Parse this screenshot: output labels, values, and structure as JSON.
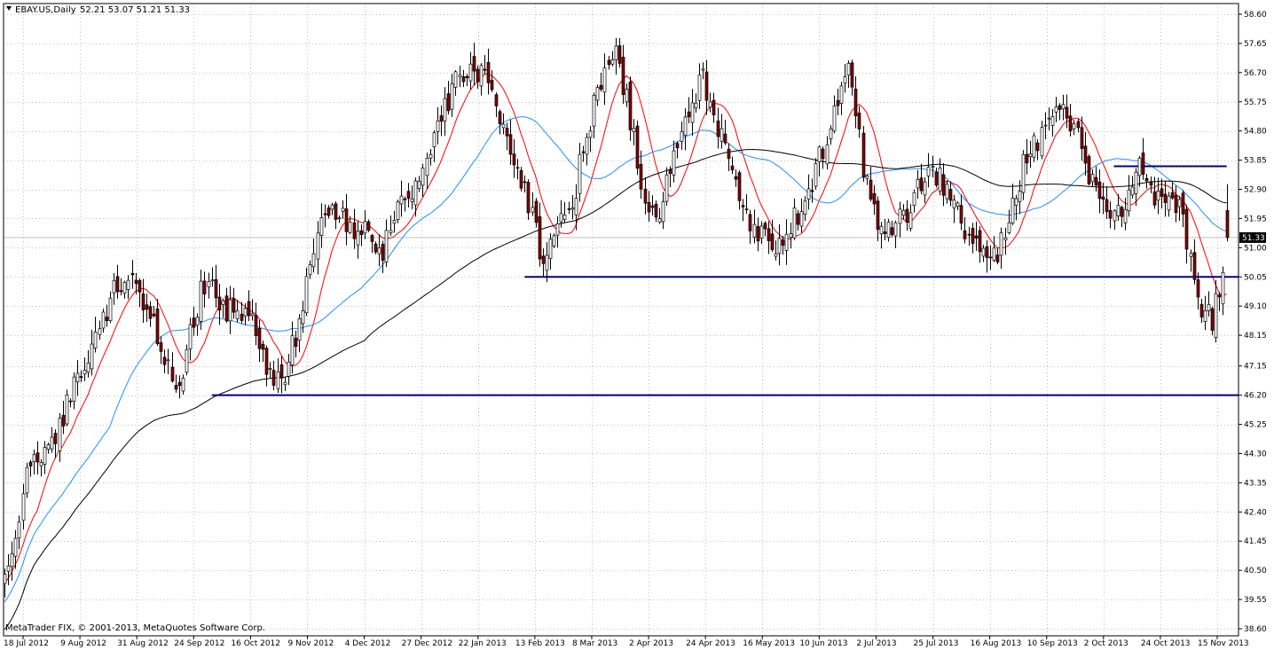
{
  "header": {
    "symbol": "EBAY.US,Daily",
    "ohlc": "52.21 53.07 51.21 51.33"
  },
  "copyright": "MetaTrader FIX, © 2001-2013, MetaQuotes Software Corp.",
  "current_price_label": "51.33",
  "colors": {
    "background": "#ffffff",
    "grid": "#c0c0c0",
    "bull_candle": "#ffffff",
    "bear_candle": "#800000",
    "candle_outline": "#000000",
    "ma_fast": "#ff0000",
    "ma_mid": "#1e90ff",
    "ma_slow": "#000000",
    "support_resistance": "#00008b",
    "current_price_box": "#000000"
  },
  "chart_data": {
    "type": "candlestick",
    "symbol": "EBAY.US",
    "timeframe": "Daily",
    "last_bar": {
      "open": 52.21,
      "high": 53.07,
      "low": 51.21,
      "close": 51.33
    },
    "ylim": [
      38.6,
      58.6
    ],
    "y_ticks": [
      "58.60",
      "57.65",
      "56.70",
      "55.75",
      "54.80",
      "53.85",
      "52.90",
      "51.95",
      "51.00",
      "50.05",
      "49.10",
      "48.15",
      "47.15",
      "46.20",
      "45.25",
      "44.30",
      "43.35",
      "42.40",
      "41.45",
      "40.50",
      "39.55",
      "38.60"
    ],
    "x_ticks": [
      "18 Jul 2012",
      "9 Aug 2012",
      "31 Aug 2012",
      "24 Sep 2012",
      "16 Oct 2012",
      "9 Nov 2012",
      "4 Dec 2012",
      "27 Dec 2012",
      "22 Jan 2013",
      "13 Feb 2013",
      "8 Mar 2013",
      "2 Apr 2013",
      "24 Apr 2013",
      "16 May 2013",
      "10 Jun 2013",
      "2 Jul 2013",
      "25 Jul 2013",
      "16 Aug 2013",
      "10 Sep 2013",
      "2 Oct 2013",
      "24 Oct 2013",
      "15 Nov 2013"
    ],
    "grid": true,
    "legend": "none",
    "anchors": [
      [
        0,
        40.0
      ],
      [
        6,
        43.6
      ],
      [
        12,
        44.5
      ],
      [
        18,
        46.2
      ],
      [
        24,
        47.8
      ],
      [
        30,
        49.6
      ],
      [
        35,
        49.8
      ],
      [
        40,
        48.6
      ],
      [
        44,
        47.6
      ],
      [
        48,
        46.5
      ],
      [
        52,
        48.8
      ],
      [
        56,
        50.2
      ],
      [
        60,
        49.0
      ],
      [
        64,
        49.2
      ],
      [
        68,
        48.5
      ],
      [
        72,
        47.2
      ],
      [
        76,
        46.4
      ],
      [
        80,
        48.2
      ],
      [
        84,
        50.5
      ],
      [
        88,
        52.2
      ],
      [
        92,
        52.0
      ],
      [
        96,
        51.5
      ],
      [
        100,
        51.8
      ],
      [
        104,
        50.6
      ],
      [
        108,
        52.8
      ],
      [
        112,
        52.6
      ],
      [
        116,
        53.9
      ],
      [
        120,
        55.2
      ],
      [
        124,
        56.3
      ],
      [
        128,
        56.8
      ],
      [
        132,
        56.5
      ],
      [
        136,
        55.4
      ],
      [
        140,
        54.0
      ],
      [
        144,
        52.5
      ],
      [
        148,
        50.6
      ],
      [
        152,
        51.8
      ],
      [
        156,
        52.4
      ],
      [
        160,
        54.8
      ],
      [
        164,
        56.5
      ],
      [
        168,
        57.3
      ],
      [
        172,
        55.2
      ],
      [
        176,
        52.6
      ],
      [
        180,
        52.2
      ],
      [
        184,
        53.9
      ],
      [
        188,
        55.3
      ],
      [
        192,
        56.6
      ],
      [
        196,
        55.0
      ],
      [
        200,
        53.8
      ],
      [
        204,
        52.0
      ],
      [
        208,
        51.4
      ],
      [
        212,
        51.2
      ],
      [
        216,
        51.7
      ],
      [
        220,
        52.3
      ],
      [
        224,
        53.9
      ],
      [
        228,
        55.6
      ],
      [
        232,
        57.3
      ],
      [
        236,
        53.6
      ],
      [
        240,
        52.0
      ],
      [
        244,
        51.5
      ],
      [
        248,
        52.2
      ],
      [
        252,
        53.2
      ],
      [
        256,
        53.4
      ],
      [
        260,
        52.7
      ],
      [
        264,
        51.6
      ],
      [
        268,
        50.8
      ],
      [
        272,
        50.6
      ],
      [
        276,
        52.0
      ],
      [
        280,
        53.7
      ],
      [
        284,
        54.5
      ],
      [
        288,
        55.4
      ],
      [
        292,
        55.2
      ],
      [
        296,
        54.3
      ],
      [
        300,
        52.7
      ],
      [
        304,
        51.9
      ],
      [
        308,
        52.2
      ],
      [
        312,
        53.5
      ],
      [
        316,
        52.7
      ],
      [
        320,
        52.5
      ],
      [
        324,
        52.0
      ],
      [
        328,
        49.3
      ],
      [
        332,
        48.7
      ],
      [
        334,
        49.6
      ],
      [
        336,
        51.33
      ]
    ],
    "horizontal_lines": [
      {
        "price": 46.2,
        "from_bar": 57
      },
      {
        "price": 50.05,
        "from_bar": 143
      },
      {
        "price": 53.65,
        "from_bar": 305,
        "to_bar": 336
      }
    ],
    "moving_averages": [
      {
        "period": 10,
        "color": "#ff0000"
      },
      {
        "period": 30,
        "color": "#1e90ff"
      },
      {
        "period": 100,
        "color": "#000000"
      }
    ]
  }
}
